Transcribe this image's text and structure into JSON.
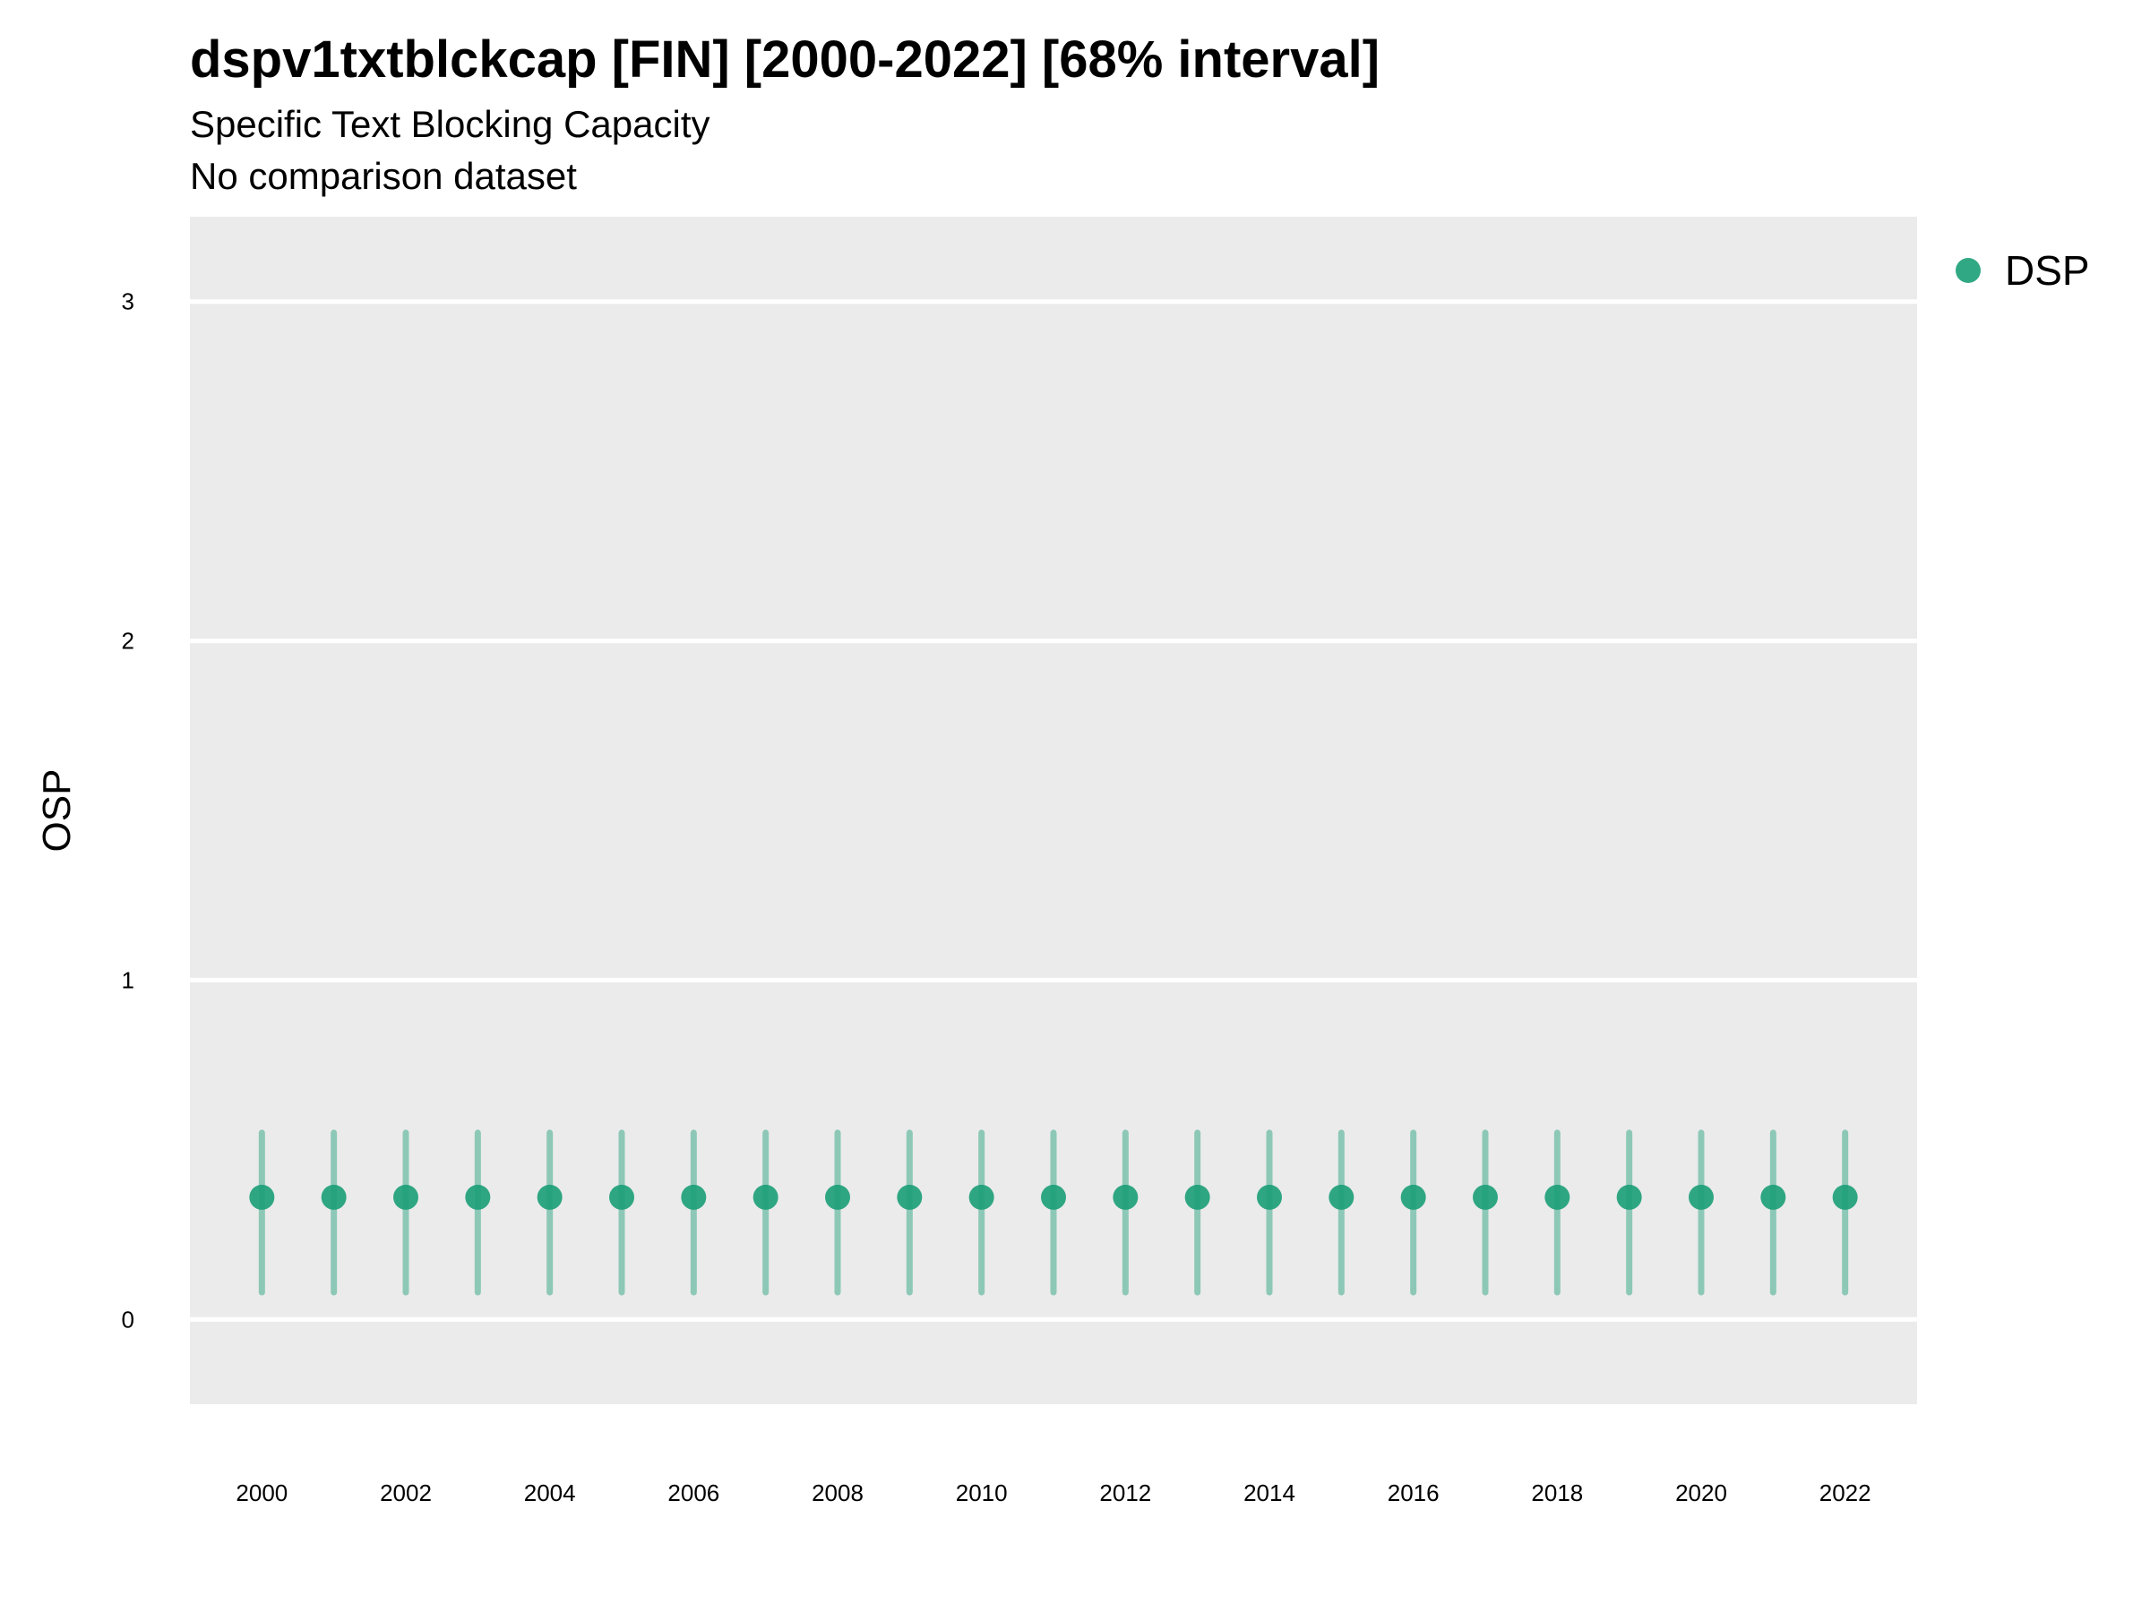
{
  "title": "dspv1txtblckcap [FIN] [2000-2022] [68% interval]",
  "subtitle": "Specific Text Blocking Capacity",
  "subtitle2": "No comparison dataset",
  "colors": {
    "panel": "#ebebeb",
    "grid": "#ffffff",
    "series": "#1b9e77"
  },
  "chart_data": {
    "type": "scatter",
    "title": "dspv1txtblckcap [FIN] [2000-2022] [68% interval]",
    "subtitle": "Specific Text Blocking Capacity; No comparison dataset",
    "xlabel": "",
    "ylabel": "OSP",
    "xlim": [
      1999,
      2023
    ],
    "ylim": [
      -0.25,
      3.25
    ],
    "y_ticks": [
      0,
      1,
      2,
      3
    ],
    "x_ticks": [
      2000,
      2002,
      2004,
      2006,
      2008,
      2010,
      2012,
      2014,
      2016,
      2018,
      2020,
      2022
    ],
    "grid": true,
    "legend": "right",
    "series": [
      {
        "name": "DSP",
        "x": [
          2000,
          2001,
          2002,
          2003,
          2004,
          2005,
          2006,
          2007,
          2008,
          2009,
          2010,
          2011,
          2012,
          2013,
          2014,
          2015,
          2016,
          2017,
          2018,
          2019,
          2020,
          2021,
          2022
        ],
        "y": [
          0.36,
          0.36,
          0.36,
          0.36,
          0.36,
          0.36,
          0.36,
          0.36,
          0.36,
          0.36,
          0.36,
          0.36,
          0.36,
          0.36,
          0.36,
          0.36,
          0.36,
          0.36,
          0.36,
          0.36,
          0.36,
          0.36,
          0.36
        ],
        "lower": [
          0.08,
          0.08,
          0.08,
          0.08,
          0.08,
          0.08,
          0.08,
          0.08,
          0.08,
          0.08,
          0.08,
          0.08,
          0.08,
          0.08,
          0.08,
          0.08,
          0.08,
          0.08,
          0.08,
          0.08,
          0.08,
          0.08,
          0.08
        ],
        "upper": [
          0.55,
          0.55,
          0.55,
          0.55,
          0.55,
          0.55,
          0.55,
          0.55,
          0.55,
          0.55,
          0.55,
          0.55,
          0.55,
          0.55,
          0.55,
          0.55,
          0.55,
          0.55,
          0.55,
          0.55,
          0.55,
          0.55,
          0.55
        ]
      }
    ]
  }
}
